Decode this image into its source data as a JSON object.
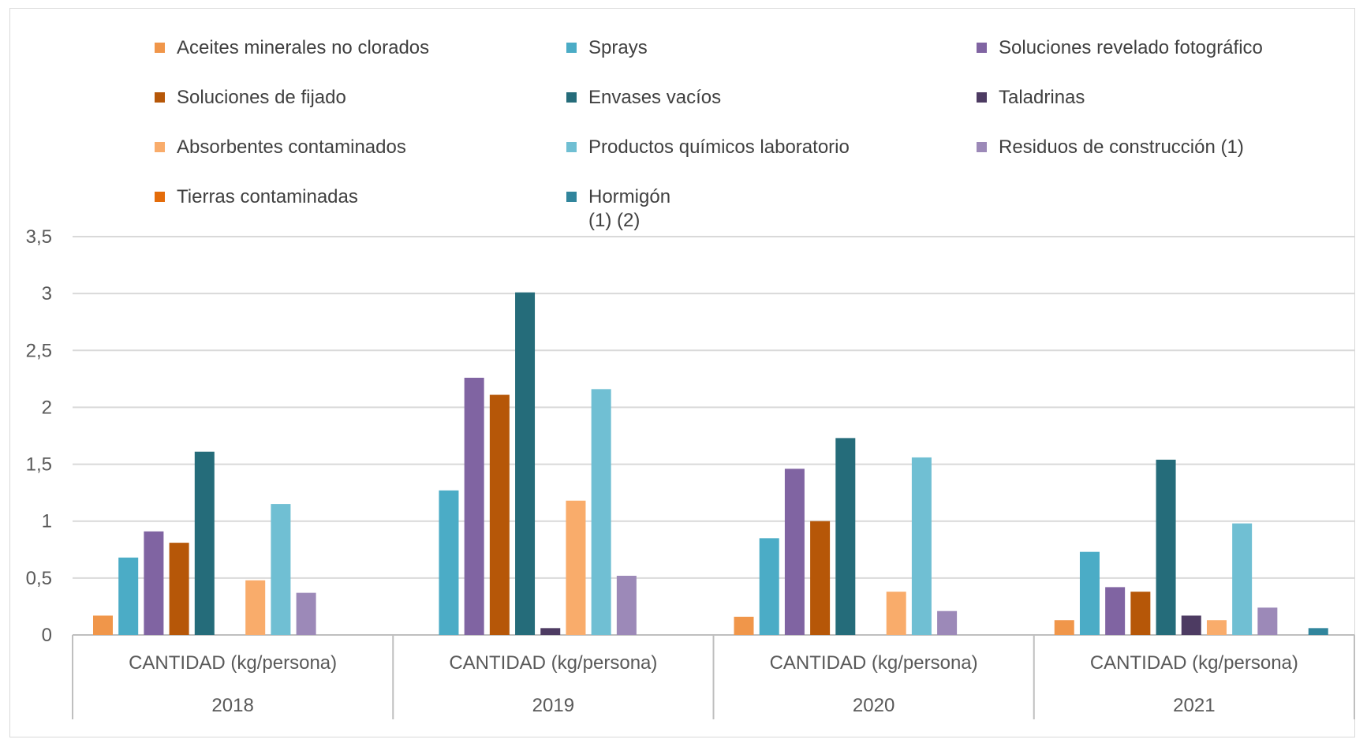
{
  "chart_data": {
    "type": "bar",
    "title": "",
    "xlabel": "",
    "ylabel": "",
    "ylim": [
      0,
      3.5
    ],
    "yticks": [
      "0",
      "0,5",
      "1",
      "1,5",
      "2",
      "2,5",
      "3",
      "3,5"
    ],
    "grid": true,
    "legend_position": "top",
    "categories": [
      "2018",
      "2019",
      "2020",
      "2021"
    ],
    "category_sublabels": [
      "CANTIDAD (kg/persona)",
      "CANTIDAD (kg/persona)",
      "CANTIDAD (kg/persona)",
      "CANTIDAD (kg/persona)"
    ],
    "series": [
      {
        "name": "Aceites minerales no clorados",
        "color": "#f0964a",
        "values": [
          0.17,
          0,
          0.16,
          0.13
        ]
      },
      {
        "name": "Sprays",
        "color": "#4bacc6",
        "values": [
          0.68,
          1.27,
          0.85,
          0.73
        ]
      },
      {
        "name": "Soluciones revelado fotográfico",
        "color": "#8064a2",
        "values": [
          0.91,
          2.26,
          1.46,
          0.42
        ]
      },
      {
        "name": "Soluciones de fijado",
        "color": "#b65708",
        "values": [
          0.81,
          2.11,
          1.0,
          0.38
        ]
      },
      {
        "name": "Envases vacíos",
        "color": "#256c7a",
        "values": [
          1.61,
          3.01,
          1.73,
          1.54
        ]
      },
      {
        "name": "Taladrinas",
        "color": "#4d3b62",
        "values": [
          0,
          0.06,
          0,
          0.17
        ]
      },
      {
        "name": "Absorbentes contaminados",
        "color": "#f9ac6b",
        "values": [
          0.48,
          1.18,
          0.38,
          0.13
        ]
      },
      {
        "name": "Productos químicos laboratorio",
        "color": "#70bfd3",
        "values": [
          1.15,
          2.16,
          1.56,
          0.98
        ]
      },
      {
        "name": "Residuos de construcción (1)",
        "color": "#9c89b8",
        "values": [
          0.37,
          0.52,
          0.21,
          0.24
        ]
      },
      {
        "name": "Tierras contaminadas",
        "color": "#e46c0a",
        "values": [
          0,
          0,
          0,
          0
        ]
      },
      {
        "name": "Hormigón\n(1) (2)",
        "color": "#31859c",
        "values": [
          0,
          0,
          0,
          0.06
        ]
      }
    ]
  }
}
